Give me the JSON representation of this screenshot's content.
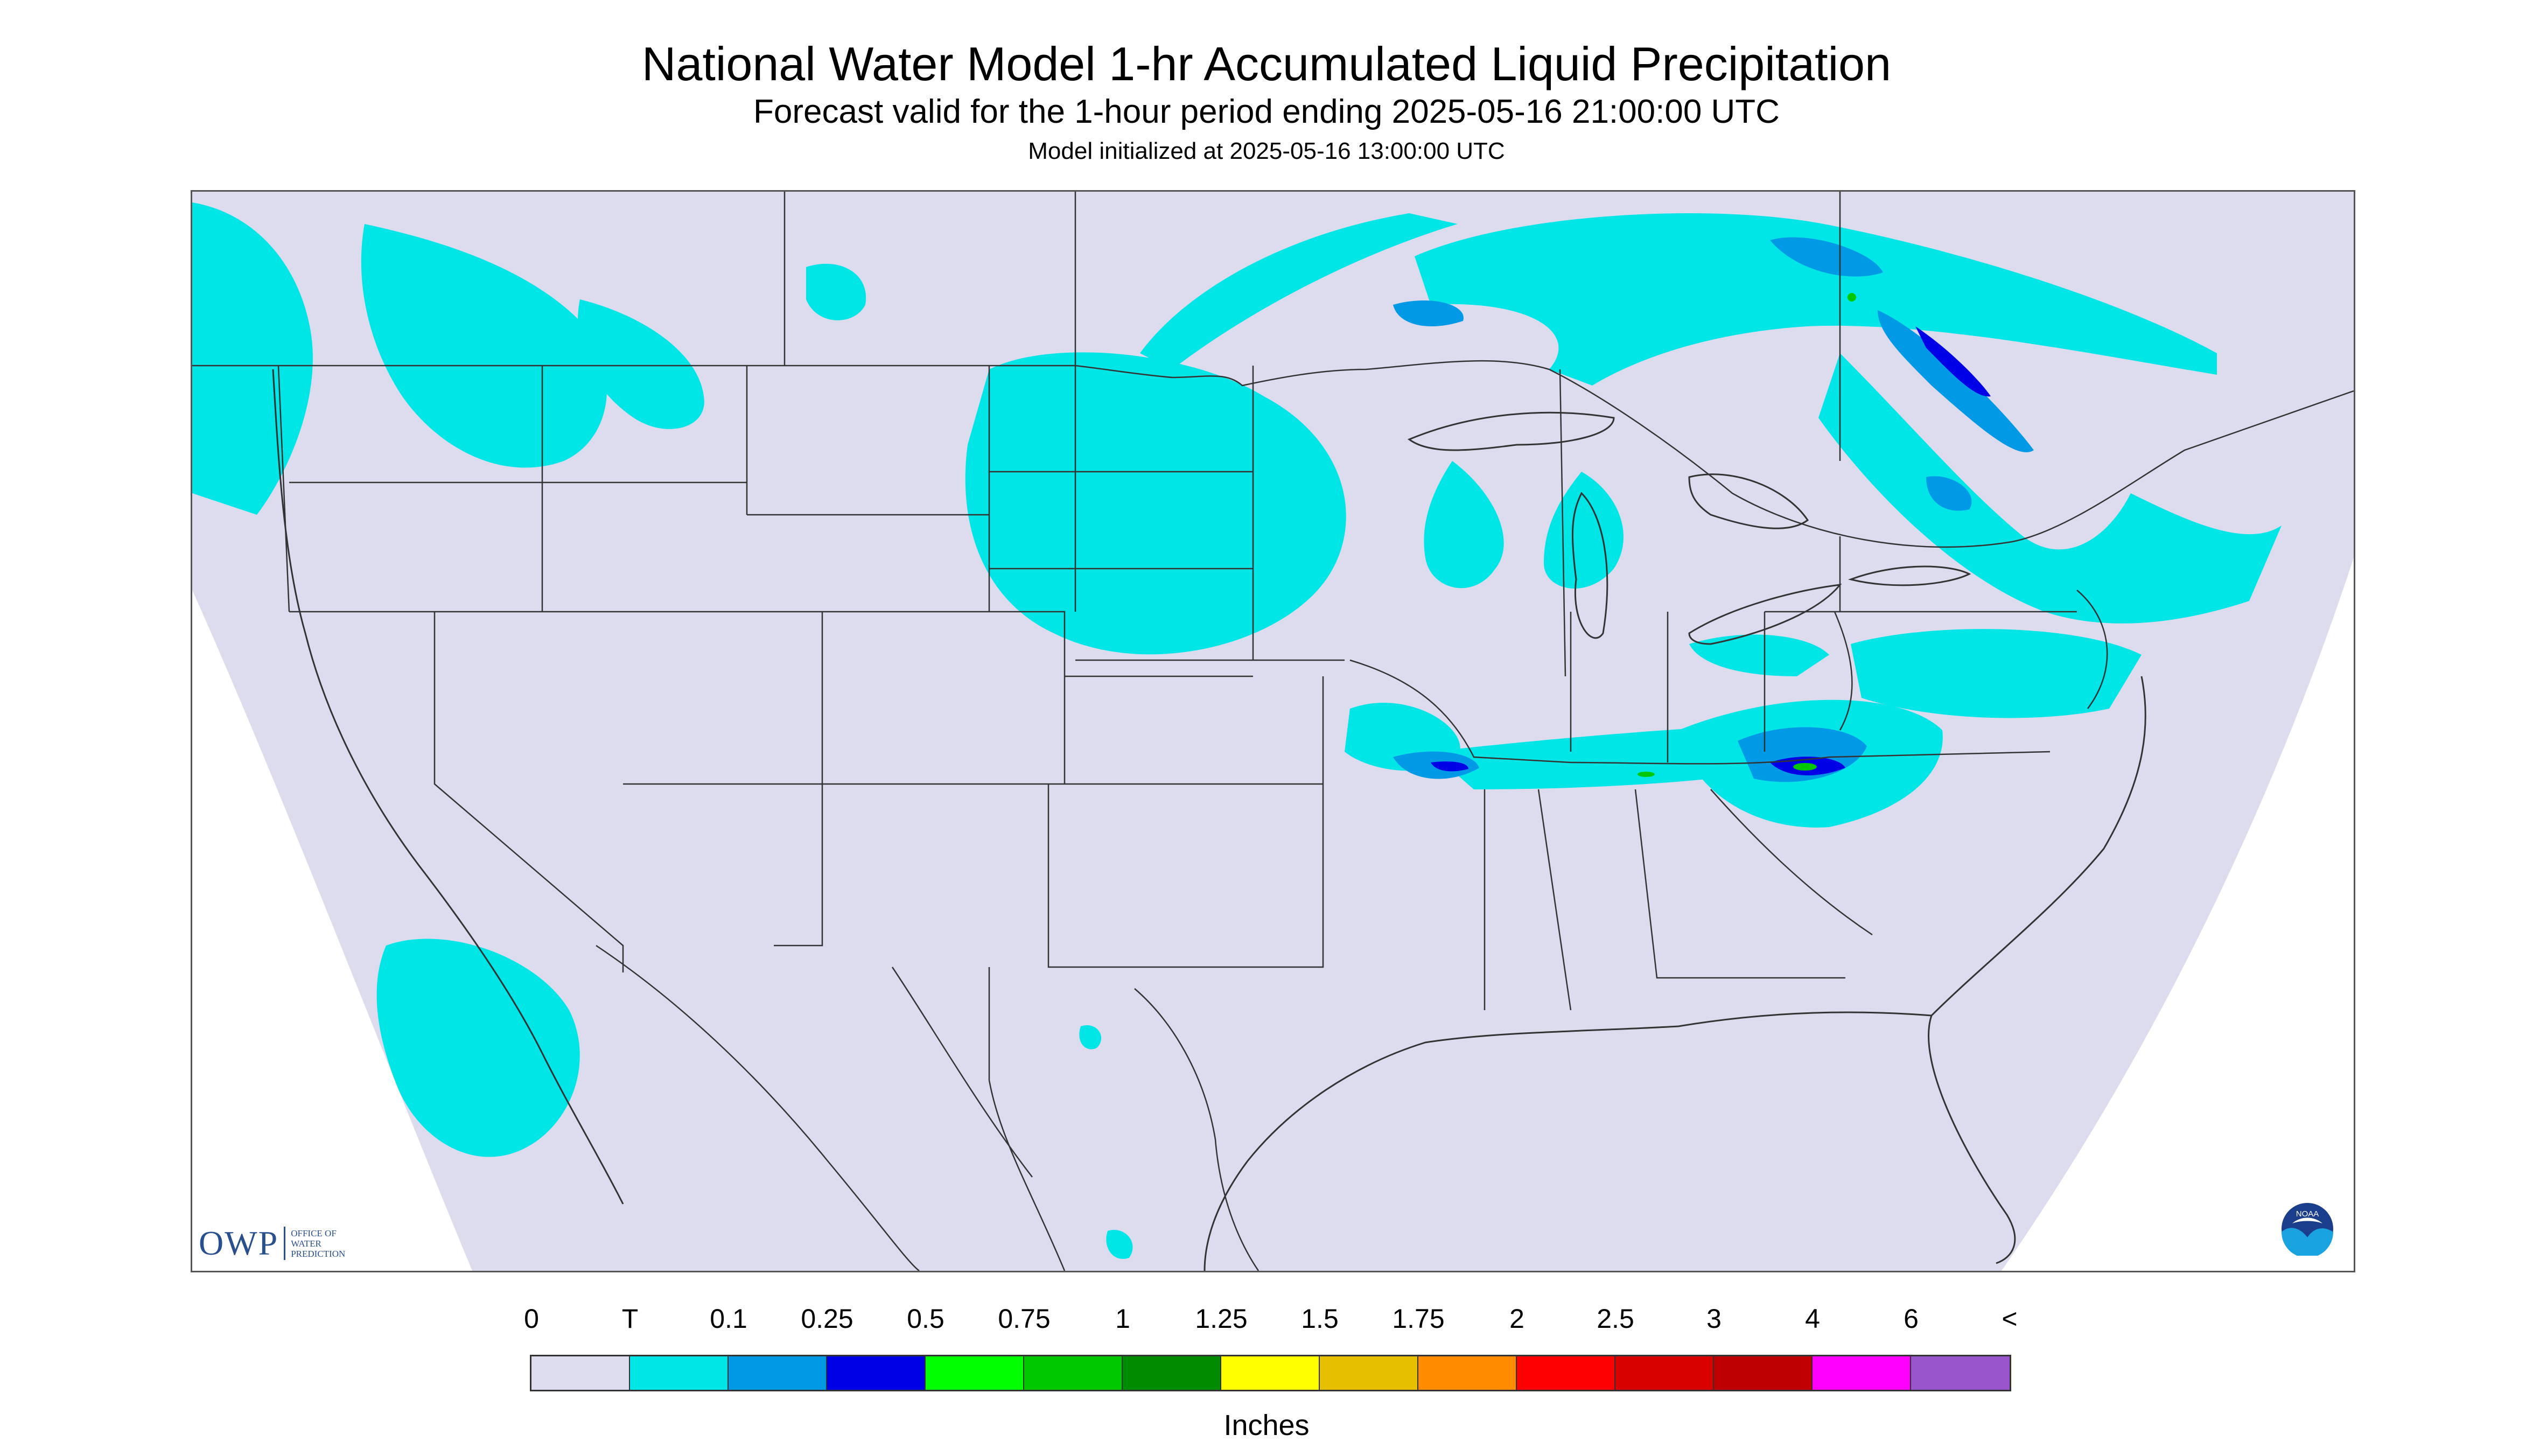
{
  "header": {
    "title": "National Water Model 1-hr Accumulated Liquid Precipitation",
    "subtitle": "Forecast valid for the 1-hour period ending 2025-05-16 21:00:00 UTC",
    "init": "Model initialized at 2025-05-16 13:00:00 UTC"
  },
  "logos": {
    "owp_mark": "OWP",
    "owp_lines": [
      "OFFICE OF",
      "WATER",
      "PREDICTION"
    ],
    "noaa": "NOAA"
  },
  "colors": {
    "background_domain": "#dcdcee",
    "outside_domain": "#ffffff",
    "boundaries": "#333333",
    "trace": "#00e5e5",
    "p01": "#0099e6",
    "p025": "#0000e6"
  },
  "legend": {
    "labels": [
      "0",
      "T",
      "0.1",
      "0.25",
      "0.5",
      "0.75",
      "1",
      "1.25",
      "1.5",
      "1.75",
      "2",
      "2.5",
      "3",
      "4",
      "6",
      "<"
    ],
    "colors": [
      "#dcdcee",
      "#00e5e5",
      "#0099e6",
      "#0000e6",
      "#00ff00",
      "#00c800",
      "#008c00",
      "#ffff00",
      "#e6bf00",
      "#ff8c00",
      "#ff0000",
      "#d90000",
      "#bf0000",
      "#ff00ff",
      "#9955cc"
    ],
    "units": "Inches"
  }
}
